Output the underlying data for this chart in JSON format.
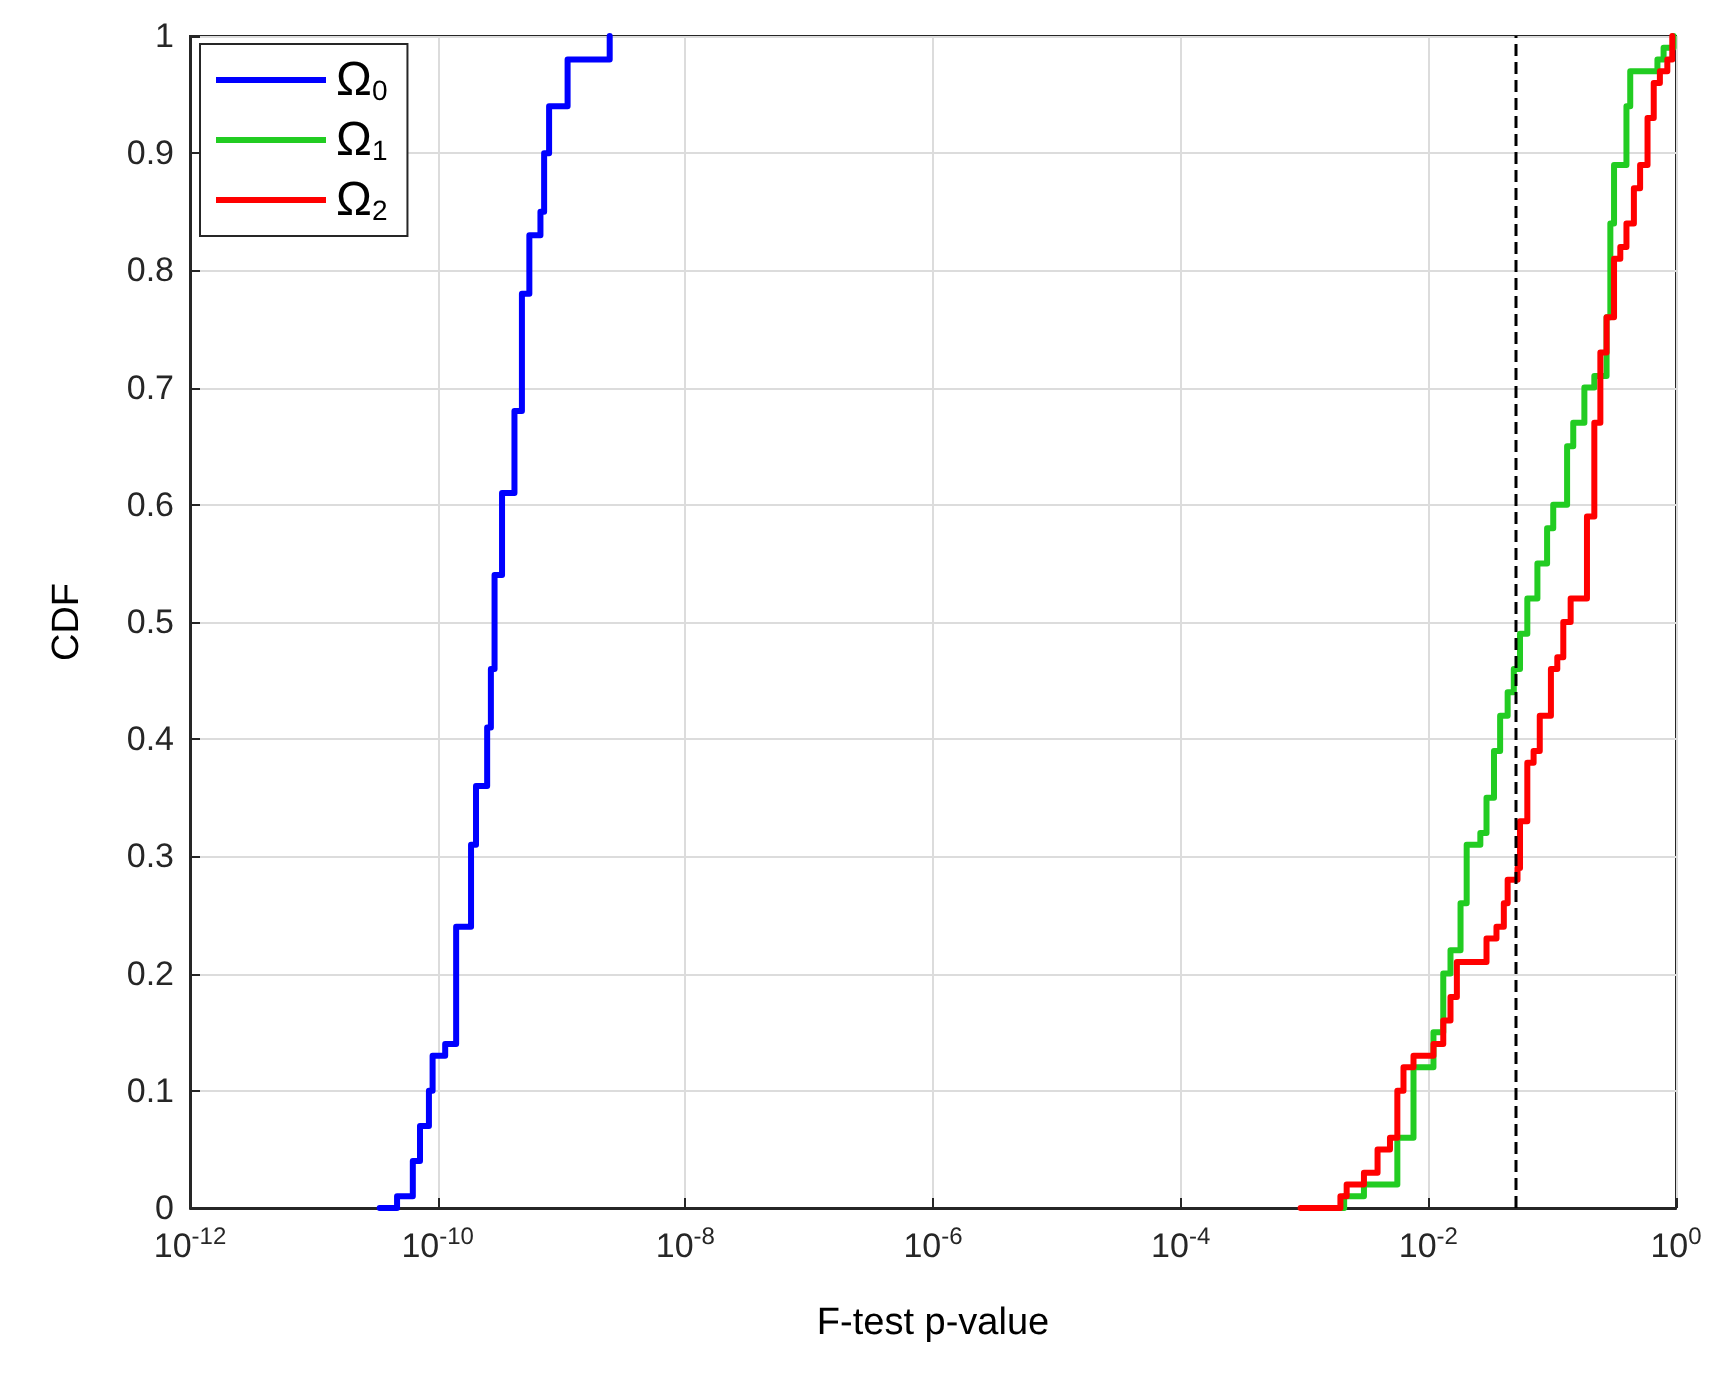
{
  "chart_data": {
    "type": "step",
    "xlabel": "F-test p-value",
    "ylabel": "CDF",
    "log": "x",
    "grid": true,
    "legend": "top left",
    "marker": "none",
    "line_style": "solid",
    "xlim": [
      1e-12,
      1
    ],
    "ylim": [
      0,
      1
    ],
    "xticks": [
      {
        "value": 1e-12,
        "label": "10$^{-12}$"
      },
      {
        "value": 1e-10,
        "label": "10$^{-10}$"
      },
      {
        "value": 1e-08,
        "label": "10$^{-8}$"
      },
      {
        "value": 1e-06,
        "label": "10$^{-6}$"
      },
      {
        "value": 0.0001,
        "label": "10$^{-4}$"
      },
      {
        "value": 0.01,
        "label": "10$^{-2}$"
      },
      {
        "value": 1,
        "label": "10$^{0}$"
      }
    ],
    "yticks": [
      0,
      0.1,
      0.2,
      0.3,
      0.4,
      0.5,
      0.6,
      0.7,
      0.8,
      0.9,
      1
    ],
    "ref_lines": [
      {
        "axis": "x",
        "value": 0.05,
        "color": "#000000",
        "line_style": "dashed"
      }
    ],
    "series": [
      {
        "name": "Ω$_{0}$",
        "color": "#0000ff",
        "x": [
          3.4e-11,
          4.7e-11,
          6.3e-11,
          7.2e-11,
          8.5e-11,
          9.1e-11,
          1.15e-10,
          1.41e-10,
          1.86e-10,
          2.04e-10,
          2.51e-10,
          2.69e-10,
          2.88e-10,
          3.31e-10,
          4.17e-10,
          4.79e-10,
          5.5e-10,
          6.76e-10,
          7.24e-10,
          7.94e-10,
          1.12e-09,
          2.29e-09,
          2.45e-09
        ],
        "values": [
          0,
          0.01,
          0.04,
          0.07,
          0.1,
          0.13,
          0.14,
          0.24,
          0.31,
          0.36,
          0.41,
          0.46,
          0.54,
          0.61,
          0.68,
          0.78,
          0.83,
          0.85,
          0.9,
          0.94,
          0.98,
          0.98,
          1
        ]
      },
      {
        "name": "Ω$_{1}$",
        "color": "#22cc22",
        "x": [
          0.00105,
          0.00209,
          0.00302,
          0.00562,
          0.00759,
          0.011,
          0.0132,
          0.0151,
          0.0182,
          0.0204,
          0.0263,
          0.0295,
          0.0339,
          0.038,
          0.0437,
          0.049,
          0.055,
          0.063,
          0.076,
          0.091,
          0.102,
          0.132,
          0.148,
          0.182,
          0.219,
          0.275,
          0.295,
          0.316,
          0.398,
          0.427,
          0.708,
          0.794,
          0.955
        ],
        "values": [
          0,
          0.01,
          0.02,
          0.06,
          0.12,
          0.15,
          0.2,
          0.22,
          0.26,
          0.31,
          0.32,
          0.35,
          0.39,
          0.42,
          0.44,
          0.46,
          0.49,
          0.52,
          0.55,
          0.58,
          0.6,
          0.65,
          0.67,
          0.7,
          0.71,
          0.76,
          0.84,
          0.89,
          0.94,
          0.97,
          0.98,
          0.99,
          1
        ]
      },
      {
        "name": "Ω$_{2}$",
        "color": "#ff0000",
        "x": [
          0.00093,
          0.00195,
          0.00219,
          0.00302,
          0.00389,
          0.0049,
          0.00562,
          0.0063,
          0.00759,
          0.011,
          0.0132,
          0.0151,
          0.017,
          0.0245,
          0.0295,
          0.0355,
          0.0407,
          0.0437,
          0.0525,
          0.055,
          0.063,
          0.0708,
          0.0794,
          0.0977,
          0.11,
          0.123,
          0.141,
          0.191,
          0.219,
          0.245,
          0.275,
          0.316,
          0.355,
          0.398,
          0.457,
          0.513,
          0.589,
          0.661,
          0.741,
          0.851,
          0.933
        ],
        "values": [
          0,
          0.01,
          0.02,
          0.03,
          0.05,
          0.06,
          0.1,
          0.12,
          0.13,
          0.14,
          0.16,
          0.18,
          0.21,
          0.21,
          0.23,
          0.24,
          0.26,
          0.28,
          0.29,
          0.33,
          0.38,
          0.39,
          0.42,
          0.46,
          0.47,
          0.5,
          0.52,
          0.59,
          0.67,
          0.73,
          0.76,
          0.81,
          0.82,
          0.84,
          0.87,
          0.89,
          0.93,
          0.96,
          0.97,
          0.98,
          1
        ]
      }
    ]
  }
}
